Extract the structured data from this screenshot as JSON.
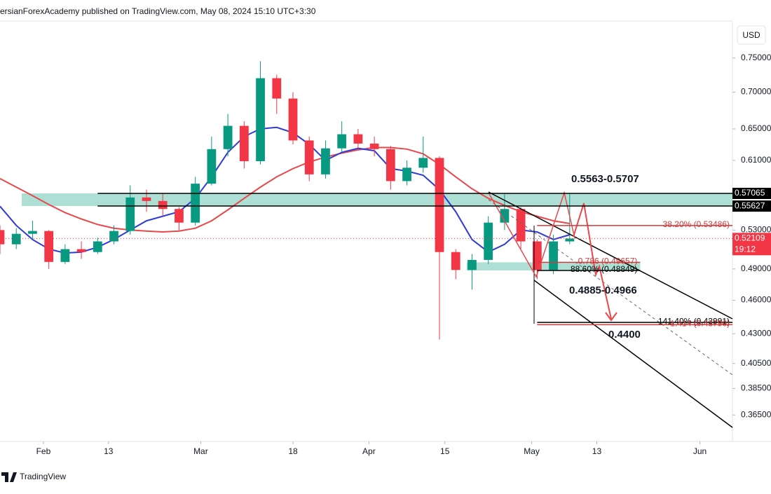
{
  "header": {
    "text": "ersianForexAcademy published on TradingView.com, May 08, 2024 15:10 UTC+3:30"
  },
  "chart_data": {
    "type": "candlestick",
    "currency": "USD",
    "log_scale": true,
    "up_color": "#089981",
    "down_color": "#f23645",
    "x": [
      "01-24",
      "01-27",
      "01-30",
      "02-02",
      "02-05",
      "02-08",
      "02-11",
      "02-14",
      "02-17",
      "02-20",
      "02-23",
      "02-26",
      "02-29",
      "03-03",
      "03-06",
      "03-09",
      "03-12",
      "03-15",
      "03-18",
      "03-21",
      "03-24",
      "03-27",
      "03-30",
      "04-02",
      "04-05",
      "04-08",
      "04-11",
      "04-14",
      "04-17",
      "04-20",
      "04-23",
      "04-26",
      "04-29",
      "05-02",
      "05-05",
      "05-08"
    ],
    "open": [
      0.53,
      0.515,
      0.526,
      0.529,
      0.497,
      0.51,
      0.507,
      0.518,
      0.529,
      0.566,
      0.562,
      0.553,
      0.538,
      0.582,
      0.624,
      0.654,
      0.609,
      0.72,
      0.691,
      0.635,
      0.593,
      0.625,
      0.643,
      0.631,
      0.624,
      0.585,
      0.601,
      0.613,
      0.507,
      0.489,
      0.499,
      0.538,
      0.553,
      0.518,
      0.489,
      0.518
    ],
    "high": [
      0.535,
      0.532,
      0.54,
      0.53,
      0.515,
      0.518,
      0.522,
      0.535,
      0.58,
      0.575,
      0.57,
      0.555,
      0.59,
      0.64,
      0.67,
      0.66,
      0.745,
      0.725,
      0.7,
      0.64,
      0.635,
      0.66,
      0.65,
      0.64,
      0.628,
      0.61,
      0.64,
      0.615,
      0.51,
      0.505,
      0.545,
      0.57,
      0.555,
      0.52,
      0.525,
      0.57
    ],
    "low": [
      0.505,
      0.51,
      0.52,
      0.49,
      0.495,
      0.5,
      0.505,
      0.515,
      0.525,
      0.55,
      0.545,
      0.53,
      0.535,
      0.58,
      0.615,
      0.6,
      0.605,
      0.67,
      0.63,
      0.585,
      0.588,
      0.62,
      0.625,
      0.615,
      0.575,
      0.58,
      0.595,
      0.425,
      0.48,
      0.47,
      0.495,
      0.53,
      0.51,
      0.48,
      0.485,
      0.515
    ],
    "close": [
      0.515,
      0.526,
      0.529,
      0.497,
      0.51,
      0.507,
      0.518,
      0.529,
      0.566,
      0.562,
      0.553,
      0.538,
      0.582,
      0.624,
      0.654,
      0.609,
      0.72,
      0.691,
      0.635,
      0.593,
      0.625,
      0.643,
      0.631,
      0.624,
      0.585,
      0.601,
      0.613,
      0.507,
      0.489,
      0.499,
      0.538,
      0.553,
      0.518,
      0.489,
      0.518,
      0.521
    ],
    "lines": [
      {
        "color": "#e8484b",
        "values": [
          0.588,
          0.578,
          0.568,
          0.558,
          0.549,
          0.542,
          0.536,
          0.532,
          0.53,
          0.529,
          0.528,
          0.529,
          0.532,
          0.54,
          0.552,
          0.565,
          0.578,
          0.59,
          0.6,
          0.608,
          0.614,
          0.619,
          0.623,
          0.626,
          0.626,
          0.624,
          0.618,
          0.605,
          0.59,
          0.576,
          0.565,
          0.557,
          0.55,
          0.545,
          0.54,
          0.537
        ]
      },
      {
        "color": "#2f3bd6",
        "values": [
          0.556,
          0.535,
          0.52,
          0.51,
          0.506,
          0.507,
          0.512,
          0.52,
          0.53,
          0.54,
          0.545,
          0.55,
          0.565,
          0.59,
          0.62,
          0.64,
          0.65,
          0.652,
          0.645,
          0.63,
          0.61,
          0.62,
          0.625,
          0.622,
          0.6,
          0.597,
          0.592,
          0.575,
          0.55,
          0.52,
          0.507,
          0.515,
          0.53,
          0.528,
          0.52,
          0.525
        ]
      }
    ],
    "xlim": [
      "01-24",
      "06-07"
    ],
    "xticks": [
      {
        "value": "02-01",
        "label": "Feb"
      },
      {
        "value": "02-13",
        "label": "13"
      },
      {
        "value": "03-01",
        "label": "Mar"
      },
      {
        "value": "03-18",
        "label": "18"
      },
      {
        "value": "04-01",
        "label": "Apr"
      },
      {
        "value": "04-15",
        "label": "15"
      },
      {
        "value": "05-01",
        "label": "May"
      },
      {
        "value": "05-13",
        "label": "13"
      },
      {
        "value": "06-01",
        "label": "Jun"
      }
    ],
    "ylim": [
      0.346,
      0.808
    ],
    "yticks": [
      {
        "value": 0.75,
        "label": "0.75000"
      },
      {
        "value": 0.7,
        "label": "0.70000"
      },
      {
        "value": 0.65,
        "label": "0.65000"
      },
      {
        "value": 0.61,
        "label": "0.61000"
      },
      {
        "value": 0.53,
        "label": "0.53000"
      },
      {
        "value": 0.49,
        "label": "0.49000"
      },
      {
        "value": 0.46,
        "label": "0.46000"
      },
      {
        "value": 0.43,
        "label": "0.43000"
      },
      {
        "value": 0.405,
        "label": "0.40500"
      },
      {
        "value": 0.385,
        "label": "0.38500"
      },
      {
        "value": 0.365,
        "label": "0.36500"
      }
    ],
    "zones": [
      {
        "low": 0.5563,
        "high": 0.5707,
        "start": "01-28",
        "end": "06-07",
        "color": "#9fd9cc",
        "label": "0.5563-0.5707"
      },
      {
        "low": 0.4885,
        "high": 0.4966,
        "start": "04-19",
        "end": "05-21",
        "color": "#9fd9cc",
        "label": "0.4885-0.4966"
      }
    ],
    "levels": [
      {
        "value": 0.5707,
        "start": "02-11",
        "end": "06-07",
        "color": "#000000"
      },
      {
        "value": 0.5563,
        "start": "02-11",
        "end": "06-07",
        "color": "#000000"
      },
      {
        "value": 0.53486,
        "start": "05-02",
        "end": "06-07",
        "color": "#d03a3a",
        "label": "38.20% (0.53486)"
      },
      {
        "value": 0.49657,
        "start": "05-02",
        "end": "05-21",
        "color": "#d03a3a",
        "label": "0.786 (0.49657)"
      },
      {
        "value": 0.48849,
        "start": "05-02",
        "end": "05-21",
        "color": "#000000",
        "label": "88.60% (0.48849)"
      },
      {
        "value": 0.43991,
        "start": "05-02",
        "end": "06-07",
        "color": "#000000",
        "label": "141.40% (0.43991)"
      },
      {
        "value": 0.4379,
        "start": "05-02",
        "end": "06-07",
        "color": "#d03a3a",
        "label": "1.414 (0.43790)"
      }
    ],
    "target": {
      "value": 0.44,
      "label": "0.4400"
    },
    "price_tags": [
      {
        "value": 0.57065,
        "color": "#000000"
      },
      {
        "value": 0.55627,
        "color": "#000000"
      },
      {
        "value": 0.52109,
        "color": "#f23645"
      }
    ],
    "countdown": "19:12"
  },
  "footer": {
    "brand": "TradingView"
  }
}
